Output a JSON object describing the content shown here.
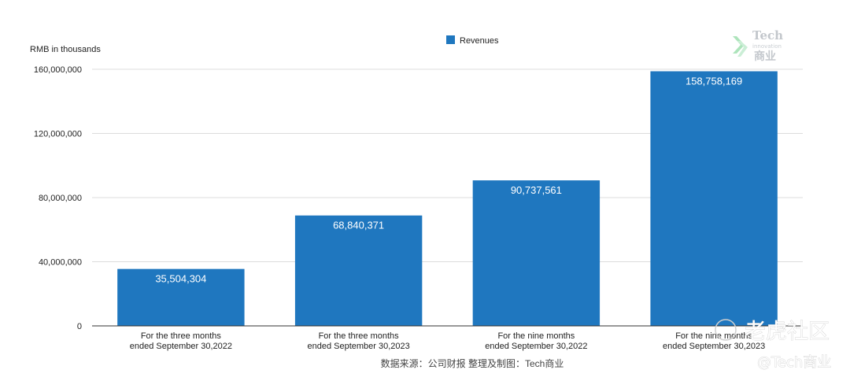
{
  "chart_data": {
    "type": "bar",
    "ylabel": "RMB in thousands",
    "ylim": [
      0,
      160000000
    ],
    "yticks": [
      "0",
      "40,000,000",
      "80,000,000",
      "120,000,000",
      "160,000,000"
    ],
    "ytick_values": [
      0,
      40000000,
      80000000,
      120000000,
      160000000
    ],
    "grid": true,
    "legend_position": "top-center",
    "categories": [
      [
        "For the three months",
        "ended September 30,2022"
      ],
      [
        "For the three months",
        "ended September 30,2023"
      ],
      [
        "For the nine months",
        "ended September 30,2022"
      ],
      [
        "For the nine months",
        "ended September 30,2023"
      ]
    ],
    "series": [
      {
        "name": "Revenues",
        "color": "#1f77bf",
        "values": [
          35504304,
          68840371,
          90737561,
          158758169
        ],
        "labels": [
          "35,504,304",
          "68,840,371",
          "90,737,561",
          "158,758,169"
        ]
      }
    ]
  },
  "source_note": "数据来源：公司财报 整理及制图：Tech商业",
  "watermark": {
    "logo_top": "Tech",
    "logo_middle": "innovation",
    "logo_bottom": "商业",
    "site": "老虎社区",
    "handle": "@Tech商业"
  }
}
